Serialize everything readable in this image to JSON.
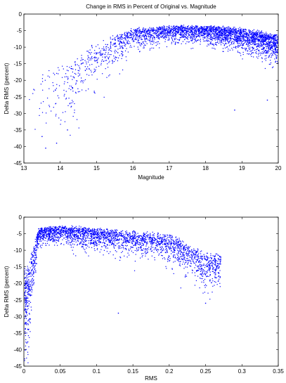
{
  "chart_data": [
    {
      "type": "scatter",
      "title": "Change in RMS in Percent of Original vs. Magnitude",
      "xlabel": "Magnitude",
      "ylabel": "Delta RMS (percent)",
      "xlim": [
        13,
        20
      ],
      "ylim": [
        -45,
        0
      ],
      "xticks": [
        "13",
        "14",
        "15",
        "16",
        "17",
        "18",
        "19",
        "20"
      ],
      "yticks": [
        "0",
        "-5",
        "-10",
        "-15",
        "-20",
        "-25",
        "-30",
        "-35",
        "-40",
        "-45"
      ],
      "xtick_values": [
        13,
        14,
        15,
        16,
        17,
        18,
        19,
        20
      ],
      "ytick_values": [
        0,
        -5,
        -10,
        -15,
        -20,
        -25,
        -30,
        -35,
        -40,
        -45
      ],
      "grid": false,
      "marker_color": "#0000ff",
      "trend_samples": [
        {
          "x": 13.3,
          "y_center": -20,
          "y_spread": 12
        },
        {
          "x": 14.0,
          "y_center": -18,
          "y_spread": 10
        },
        {
          "x": 15.0,
          "y_center": -10,
          "y_spread": 8
        },
        {
          "x": 16.0,
          "y_center": -5,
          "y_spread": 4
        },
        {
          "x": 17.0,
          "y_center": -4,
          "y_spread": 3
        },
        {
          "x": 18.0,
          "y_center": -4,
          "y_spread": 3
        },
        {
          "x": 19.0,
          "y_center": -5,
          "y_spread": 4
        },
        {
          "x": 20.0,
          "y_center": -7,
          "y_spread": 5
        }
      ],
      "outliers": [
        {
          "x": 13.6,
          "y": -40.5
        },
        {
          "x": 13.9,
          "y": -39.0
        },
        {
          "x": 13.5,
          "y": -37.0
        },
        {
          "x": 14.2,
          "y": -35.0
        },
        {
          "x": 18.8,
          "y": -29.0
        },
        {
          "x": 19.7,
          "y": -26.0
        }
      ]
    },
    {
      "type": "scatter",
      "title": "",
      "xlabel": "RMS",
      "ylabel": "Delta RMS (percent)",
      "xlim": [
        0,
        0.35
      ],
      "ylim": [
        -45,
        0
      ],
      "xticks": [
        "0",
        "0.05",
        "0.1",
        "0.15",
        "0.2",
        "0.25",
        "0.3",
        "0.35"
      ],
      "yticks": [
        "0",
        "-5",
        "-10",
        "-15",
        "-20",
        "-25",
        "-30",
        "-35",
        "-40",
        "-45"
      ],
      "xtick_values": [
        0,
        0.05,
        0.1,
        0.15,
        0.2,
        0.25,
        0.3,
        0.35
      ],
      "ytick_values": [
        0,
        -5,
        -10,
        -15,
        -20,
        -25,
        -30,
        -35,
        -40,
        -45
      ],
      "grid": false,
      "marker_color": "#0000ff",
      "trend_samples": [
        {
          "x": 0.005,
          "y_center": -18,
          "y_spread": 15
        },
        {
          "x": 0.02,
          "y_center": -4,
          "y_spread": 3
        },
        {
          "x": 0.05,
          "y_center": -3,
          "y_spread": 3
        },
        {
          "x": 0.1,
          "y_center": -4,
          "y_spread": 4
        },
        {
          "x": 0.15,
          "y_center": -5,
          "y_spread": 4
        },
        {
          "x": 0.2,
          "y_center": -6,
          "y_spread": 5
        },
        {
          "x": 0.25,
          "y_center": -12,
          "y_spread": 6
        }
      ],
      "outliers": [
        {
          "x": 0.003,
          "y": -40.0
        },
        {
          "x": 0.004,
          "y": -38.0
        },
        {
          "x": 0.006,
          "y": -34.0
        },
        {
          "x": 0.13,
          "y": -29.0
        },
        {
          "x": 0.25,
          "y": -26.0
        },
        {
          "x": 0.27,
          "y": -18.0
        }
      ]
    }
  ]
}
